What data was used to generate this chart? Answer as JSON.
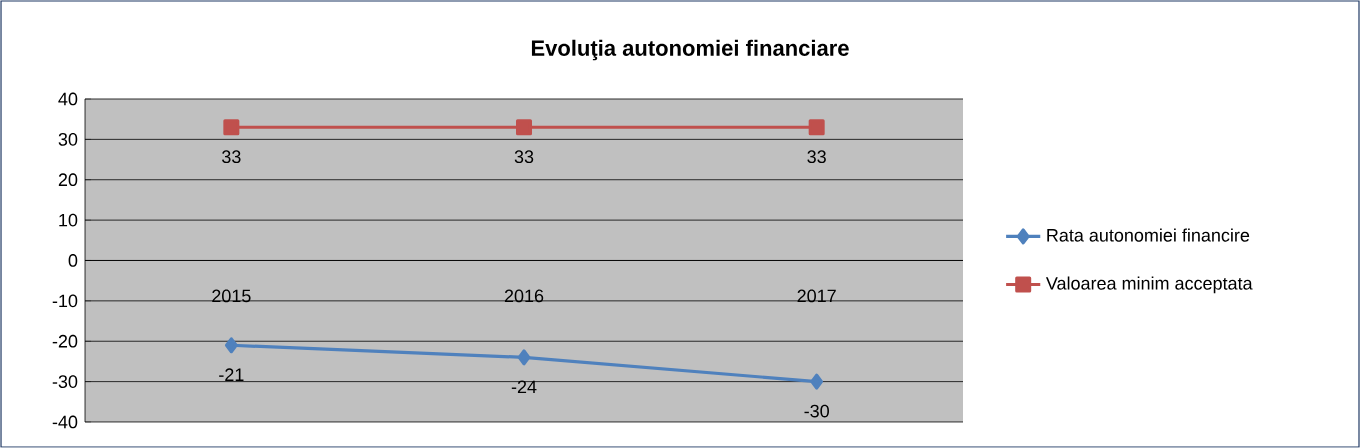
{
  "chart_data": {
    "type": "line",
    "title": "Evoluţia autonomiei financiare",
    "categories": [
      "2015",
      "2016",
      "2017"
    ],
    "series": [
      {
        "name": "Rata autonomiei financire",
        "color": "#4f81bd",
        "marker": "diamond",
        "values": [
          -21,
          -24,
          -30
        ]
      },
      {
        "name": "Valoarea minim acceptata",
        "color": "#c0504d",
        "marker": "square",
        "values": [
          33,
          33,
          33
        ]
      }
    ],
    "ylim": [
      -40,
      40
    ],
    "yticks": [
      -40,
      -30,
      -20,
      -10,
      0,
      10,
      20,
      30,
      40
    ],
    "grid": "y",
    "legend": "right",
    "data_labels": true
  }
}
